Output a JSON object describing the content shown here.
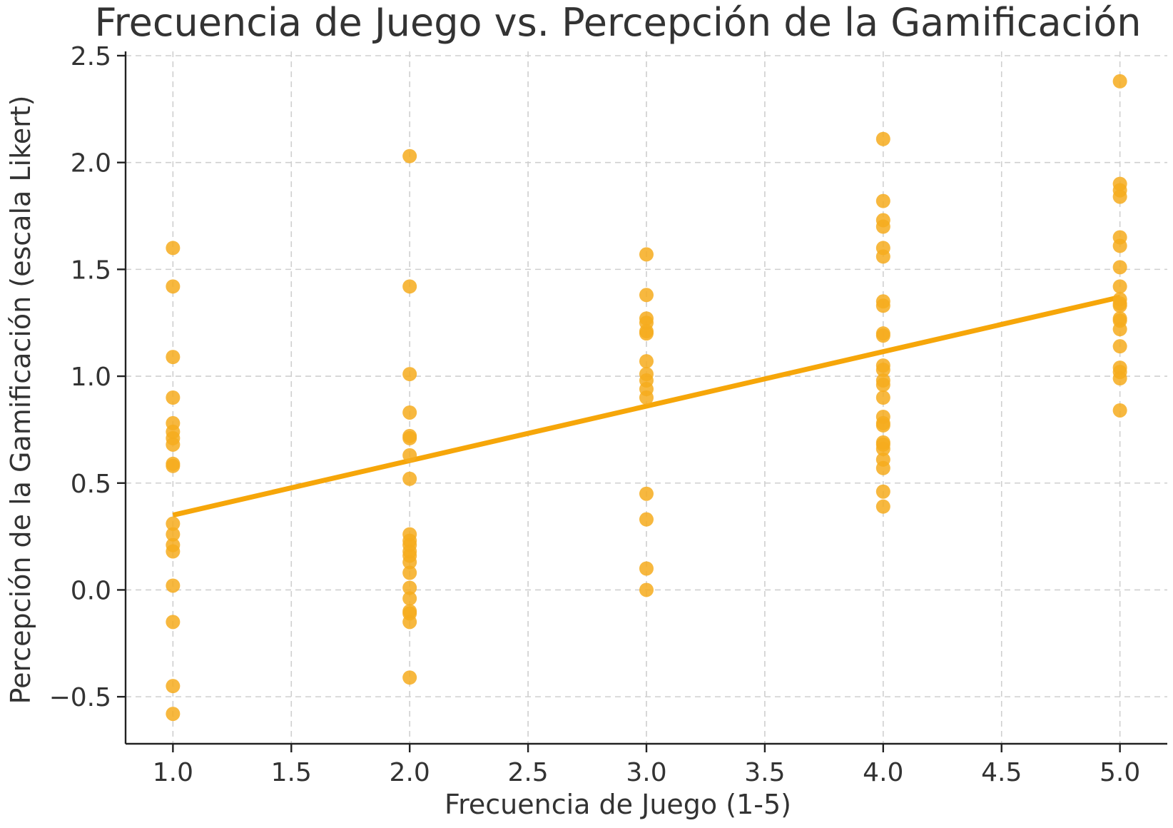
{
  "chart_data": {
    "type": "scatter",
    "title": "Frecuencia de Juego vs. Percepción de la Gamificación",
    "xlabel": "Frecuencia de Juego (1-5)",
    "ylabel": "Percepción de la Gamificación (escala Likert)",
    "xlim": [
      0.8,
      5.2
    ],
    "ylim": [
      -0.72,
      2.52
    ],
    "x_ticks": [
      1.0,
      1.5,
      2.0,
      2.5,
      3.0,
      3.5,
      4.0,
      4.5,
      5.0
    ],
    "x_tick_labels": [
      "1.0",
      "1.5",
      "2.0",
      "2.5",
      "3.0",
      "3.5",
      "4.0",
      "4.5",
      "5.0"
    ],
    "y_ticks": [
      -0.5,
      0.0,
      0.5,
      1.0,
      1.5,
      2.0,
      2.5
    ],
    "y_tick_labels": [
      "−0.5",
      "0.0",
      "0.5",
      "1.0",
      "1.5",
      "2.0",
      "2.5"
    ],
    "grid": true,
    "point_color": "#f6ab1d",
    "line_color": "#f6a609",
    "series": [
      {
        "points": [
          [
            1,
            1.6
          ],
          [
            1,
            1.42
          ],
          [
            1,
            1.09
          ],
          [
            1,
            0.9
          ],
          [
            1,
            0.78
          ],
          [
            1,
            0.74
          ],
          [
            1,
            0.71
          ],
          [
            1,
            0.68
          ],
          [
            1,
            0.59
          ],
          [
            1,
            0.58
          ],
          [
            1,
            0.31
          ],
          [
            1,
            0.26
          ],
          [
            1,
            0.21
          ],
          [
            1,
            0.18
          ],
          [
            1,
            0.02
          ],
          [
            1,
            -0.15
          ],
          [
            1,
            -0.45
          ],
          [
            1,
            -0.58
          ],
          [
            2,
            2.03
          ],
          [
            2,
            1.42
          ],
          [
            2,
            1.01
          ],
          [
            2,
            0.83
          ],
          [
            2,
            0.72
          ],
          [
            2,
            0.71
          ],
          [
            2,
            0.63
          ],
          [
            2,
            0.52
          ],
          [
            2,
            0.26
          ],
          [
            2,
            0.23
          ],
          [
            2,
            0.21
          ],
          [
            2,
            0.18
          ],
          [
            2,
            0.16
          ],
          [
            2,
            0.13
          ],
          [
            2,
            0.08
          ],
          [
            2,
            0.01
          ],
          [
            2,
            -0.04
          ],
          [
            2,
            -0.1
          ],
          [
            2,
            -0.11
          ],
          [
            2,
            -0.15
          ],
          [
            2,
            -0.41
          ],
          [
            3,
            1.57
          ],
          [
            3,
            1.38
          ],
          [
            3,
            1.27
          ],
          [
            3,
            1.25
          ],
          [
            3,
            1.21
          ],
          [
            3,
            1.2
          ],
          [
            3,
            1.07
          ],
          [
            3,
            1.01
          ],
          [
            3,
            0.98
          ],
          [
            3,
            0.94
          ],
          [
            3,
            0.9
          ],
          [
            3,
            0.45
          ],
          [
            3,
            0.33
          ],
          [
            3,
            0.1
          ],
          [
            3,
            0.0
          ],
          [
            4,
            2.11
          ],
          [
            4,
            1.82
          ],
          [
            4,
            1.73
          ],
          [
            4,
            1.7
          ],
          [
            4,
            1.6
          ],
          [
            4,
            1.56
          ],
          [
            4,
            1.35
          ],
          [
            4,
            1.33
          ],
          [
            4,
            1.2
          ],
          [
            4,
            1.19
          ],
          [
            4,
            1.05
          ],
          [
            4,
            1.03
          ],
          [
            4,
            0.98
          ],
          [
            4,
            0.96
          ],
          [
            4,
            0.9
          ],
          [
            4,
            0.81
          ],
          [
            4,
            0.78
          ],
          [
            4,
            0.77
          ],
          [
            4,
            0.69
          ],
          [
            4,
            0.68
          ],
          [
            4,
            0.66
          ],
          [
            4,
            0.61
          ],
          [
            4,
            0.57
          ],
          [
            4,
            0.46
          ],
          [
            4,
            0.39
          ],
          [
            5,
            2.38
          ],
          [
            5,
            1.9
          ],
          [
            5,
            1.87
          ],
          [
            5,
            1.84
          ],
          [
            5,
            1.65
          ],
          [
            5,
            1.61
          ],
          [
            5,
            1.51
          ],
          [
            5,
            1.42
          ],
          [
            5,
            1.36
          ],
          [
            5,
            1.34
          ],
          [
            5,
            1.33
          ],
          [
            5,
            1.27
          ],
          [
            5,
            1.26
          ],
          [
            5,
            1.22
          ],
          [
            5,
            1.14
          ],
          [
            5,
            1.04
          ],
          [
            5,
            1.02
          ],
          [
            5,
            0.99
          ],
          [
            5,
            0.84
          ]
        ]
      }
    ],
    "trend_line": {
      "x": [
        1,
        5
      ],
      "y": [
        0.35,
        1.37
      ]
    }
  }
}
